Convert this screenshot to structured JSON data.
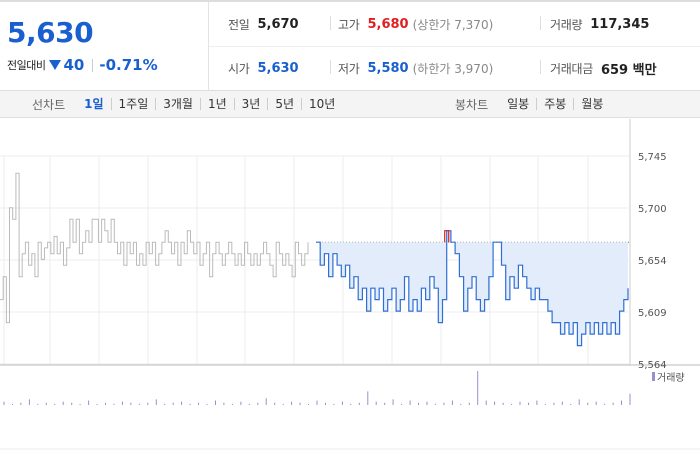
{
  "summary": {
    "price": "5,630",
    "change_label": "전일대비",
    "change_amount": "40",
    "change_rate": "-0.71%"
  },
  "info": {
    "prev_close": {
      "label": "전일",
      "value": "5,670"
    },
    "open": {
      "label": "시가",
      "value": "5,630"
    },
    "high": {
      "label": "고가",
      "value": "5,680",
      "sub": "(상한가 7,370)"
    },
    "low": {
      "label": "저가",
      "value": "5,580",
      "sub": "(하한가 3,970)"
    },
    "volume": {
      "label": "거래량",
      "value": "117,345"
    },
    "amount": {
      "label": "거래대금",
      "value": "659 백만"
    }
  },
  "tabs": {
    "line_title": "선차트",
    "line_tabs": [
      "1일",
      "1주일",
      "3개월",
      "1년",
      "3년",
      "5년",
      "10년"
    ],
    "line_active": 0,
    "candle_title": "봉차트",
    "candle_tabs": [
      "일봉",
      "주봉",
      "월봉"
    ]
  },
  "chart_data": {
    "type": "line",
    "y_ticks": [
      "5,745",
      "5,700",
      "5,654",
      "5,609",
      "5,564"
    ],
    "ylim": [
      5564,
      5745
    ],
    "reference_line": 5670,
    "grid": true,
    "volume_legend": "거래량",
    "series": [
      {
        "values": [
          5620,
          5640,
          5600,
          5700,
          5690,
          5730,
          5640,
          5660,
          5670,
          5650,
          5660,
          5640,
          5670,
          5655,
          5665,
          5670,
          5660,
          5675,
          5660,
          5670,
          5650,
          5665,
          5690,
          5670,
          5690,
          5660,
          5670,
          5680,
          5670,
          5690,
          5690,
          5670,
          5690,
          5680,
          5670,
          5690,
          5670,
          5660,
          5670,
          5650,
          5670,
          5660,
          5670,
          5650,
          5660,
          5650,
          5670,
          5660,
          5670,
          5650,
          5660,
          5670,
          5680,
          5670,
          5660,
          5670,
          5650,
          5670,
          5660,
          5680,
          5670,
          5660,
          5670,
          5650,
          5660,
          5670,
          5640,
          5660,
          5670,
          5660,
          5650,
          5660,
          5670,
          5660,
          5650,
          5660,
          5650,
          5670,
          5660,
          5650,
          5660,
          5650,
          5660,
          5670,
          5660,
          5650,
          5640,
          5670,
          5660,
          5650,
          5660,
          5650,
          5640,
          5670,
          5660,
          5650,
          5660,
          5670
        ]
      },
      {
        "values": [
          5670,
          5650,
          5660,
          5640,
          5660,
          5650,
          5640,
          5650,
          5630,
          5640,
          5620,
          5630,
          5610,
          5630,
          5620,
          5630,
          5610,
          5620,
          5630,
          5610,
          5620,
          5640,
          5610,
          5620,
          5610,
          5630,
          5620,
          5640,
          5630,
          5600,
          5620,
          5680,
          5670,
          5660,
          5640,
          5610,
          5630,
          5640,
          5620,
          5610,
          5620,
          5640,
          5670,
          5670,
          5650,
          5620,
          5640,
          5630,
          5650,
          5640,
          5630,
          5620,
          5630,
          5620,
          5620,
          5610,
          5600,
          5600,
          5590,
          5600,
          5590,
          5600,
          5580,
          5590,
          5600,
          5590,
          5600,
          5590,
          5600,
          5590,
          5600,
          5590,
          5610,
          5620,
          5630
        ]
      }
    ],
    "volume": [
      3,
      1,
      2,
      5,
      1,
      2,
      1,
      3,
      2,
      1,
      4,
      1,
      2,
      1,
      3,
      2,
      1,
      2,
      5,
      1,
      2,
      3,
      1,
      2,
      1,
      4,
      2,
      1,
      3,
      1,
      2,
      6,
      2,
      1,
      3,
      2,
      1,
      4,
      2,
      1,
      3,
      1,
      2,
      12,
      3,
      2,
      5,
      1,
      4,
      2,
      3,
      1,
      2,
      4,
      1,
      2,
      30,
      4,
      3,
      2,
      1,
      3,
      2,
      4,
      1,
      2,
      3,
      1,
      5,
      2,
      3,
      1,
      2,
      4,
      10
    ]
  }
}
